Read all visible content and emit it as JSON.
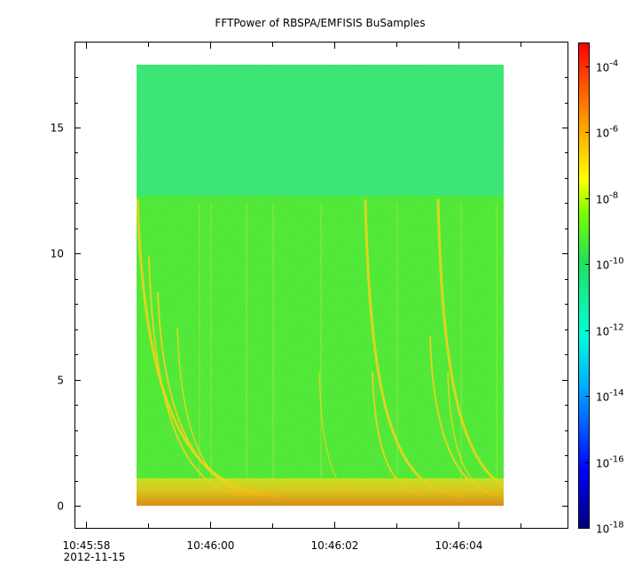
{
  "chart_data": {
    "type": "heatmap",
    "title": "FFTPower of RBSPA/EMFISIS  BuSamples",
    "xlabel": "",
    "ylabel": "",
    "x_ticks": [
      {
        "label": "10:45:58",
        "sublabel": "2012-11-15",
        "value": -2
      },
      {
        "label": "10:46:00",
        "value": 0
      },
      {
        "label": "10:46:02",
        "value": 2
      },
      {
        "label": "10:46:04",
        "value": 4
      }
    ],
    "y_ticks": [
      {
        "label": "0",
        "value": 0
      },
      {
        "label": "5",
        "value": 5
      },
      {
        "label": "10",
        "value": 10
      },
      {
        "label": "15",
        "value": 15
      }
    ],
    "ylim": [
      -0.8,
      18.5
    ],
    "colorbar": {
      "scale": "log",
      "range": [
        -18,
        -3.5
      ],
      "ticks": [
        {
          "base": "10",
          "exp": "-4",
          "value": -4
        },
        {
          "base": "10",
          "exp": "-6",
          "value": -6
        },
        {
          "base": "10",
          "exp": "-8",
          "value": -8
        },
        {
          "base": "10",
          "exp": "-10",
          "value": -10
        },
        {
          "base": "10",
          "exp": "-12",
          "value": -12
        },
        {
          "base": "10",
          "exp": "-14",
          "value": -14
        },
        {
          "base": "10",
          "exp": "-16",
          "value": -16
        },
        {
          "base": "10",
          "exp": "-18",
          "value": -18
        }
      ]
    },
    "colors": {
      "background_high": "#22e37a",
      "background_low": "#3be634",
      "hot_line": "#f2d21a",
      "base_band": "#f08a12"
    }
  }
}
